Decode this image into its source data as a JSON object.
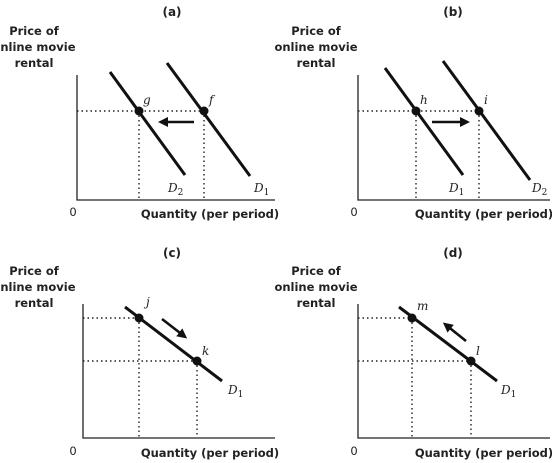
{
  "y_axis_label": [
    "Price of",
    "online movie",
    "rental"
  ],
  "x_axis_label": "Quantity (per period)",
  "origin": "0",
  "panels": [
    {
      "id": "a",
      "title": "(a)",
      "points": [
        {
          "label": "g"
        },
        {
          "label": "f"
        }
      ],
      "curves": [
        {
          "base": "D",
          "sub": "2"
        },
        {
          "base": "D",
          "sub": "1"
        }
      ],
      "arrow": "left"
    },
    {
      "id": "b",
      "title": "(b)",
      "points": [
        {
          "label": "h"
        },
        {
          "label": "i"
        }
      ],
      "curves": [
        {
          "base": "D",
          "sub": "1"
        },
        {
          "base": "D",
          "sub": "2"
        }
      ],
      "arrow": "right"
    },
    {
      "id": "c",
      "title": "(c)",
      "points": [
        {
          "label": "j"
        },
        {
          "label": "k"
        }
      ],
      "curves": [
        {
          "base": "D",
          "sub": "1"
        }
      ],
      "arrow": "down-right"
    },
    {
      "id": "d",
      "title": "(d)",
      "points": [
        {
          "label": "m"
        },
        {
          "label": "l"
        }
      ],
      "curves": [
        {
          "base": "D",
          "sub": "1"
        }
      ],
      "arrow": "up-left"
    }
  ],
  "colors": {
    "ink": "#111111",
    "background": "#ffffff"
  }
}
